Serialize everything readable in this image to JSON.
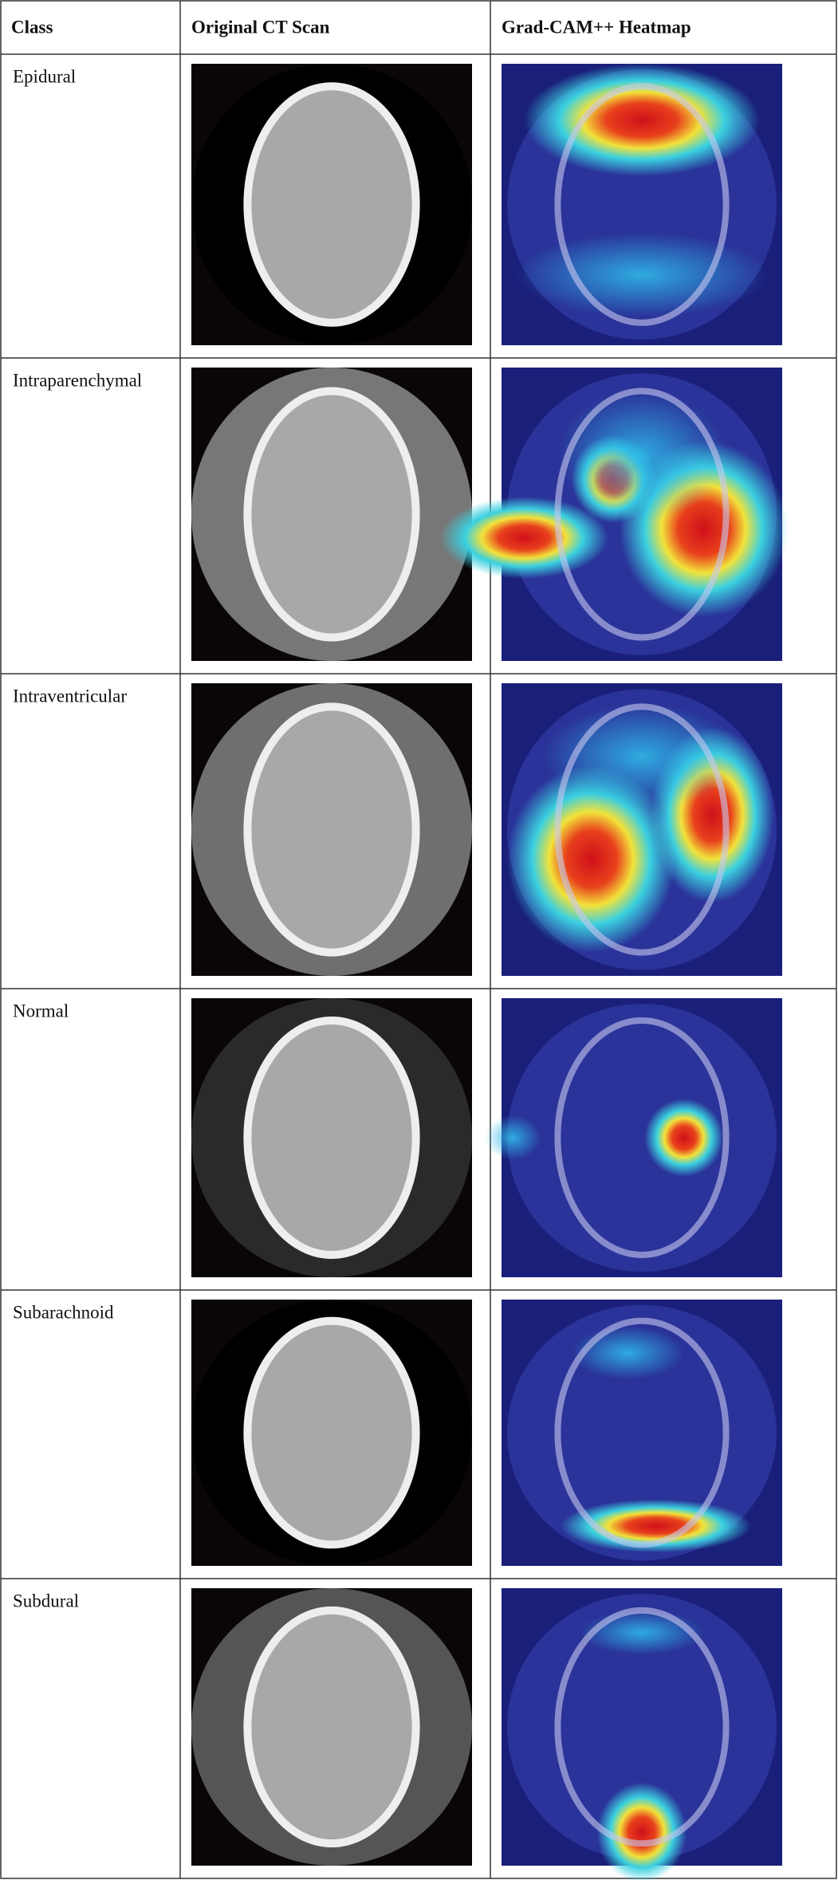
{
  "table": {
    "columns": [
      "Class",
      "Original CT Scan",
      "Grad-CAM++ Heatmap"
    ],
    "rows": [
      "Epidural",
      "Intraparenchymal",
      "Intraventricular",
      "Normal",
      "Subarachnoid",
      "Subdural"
    ]
  }
}
